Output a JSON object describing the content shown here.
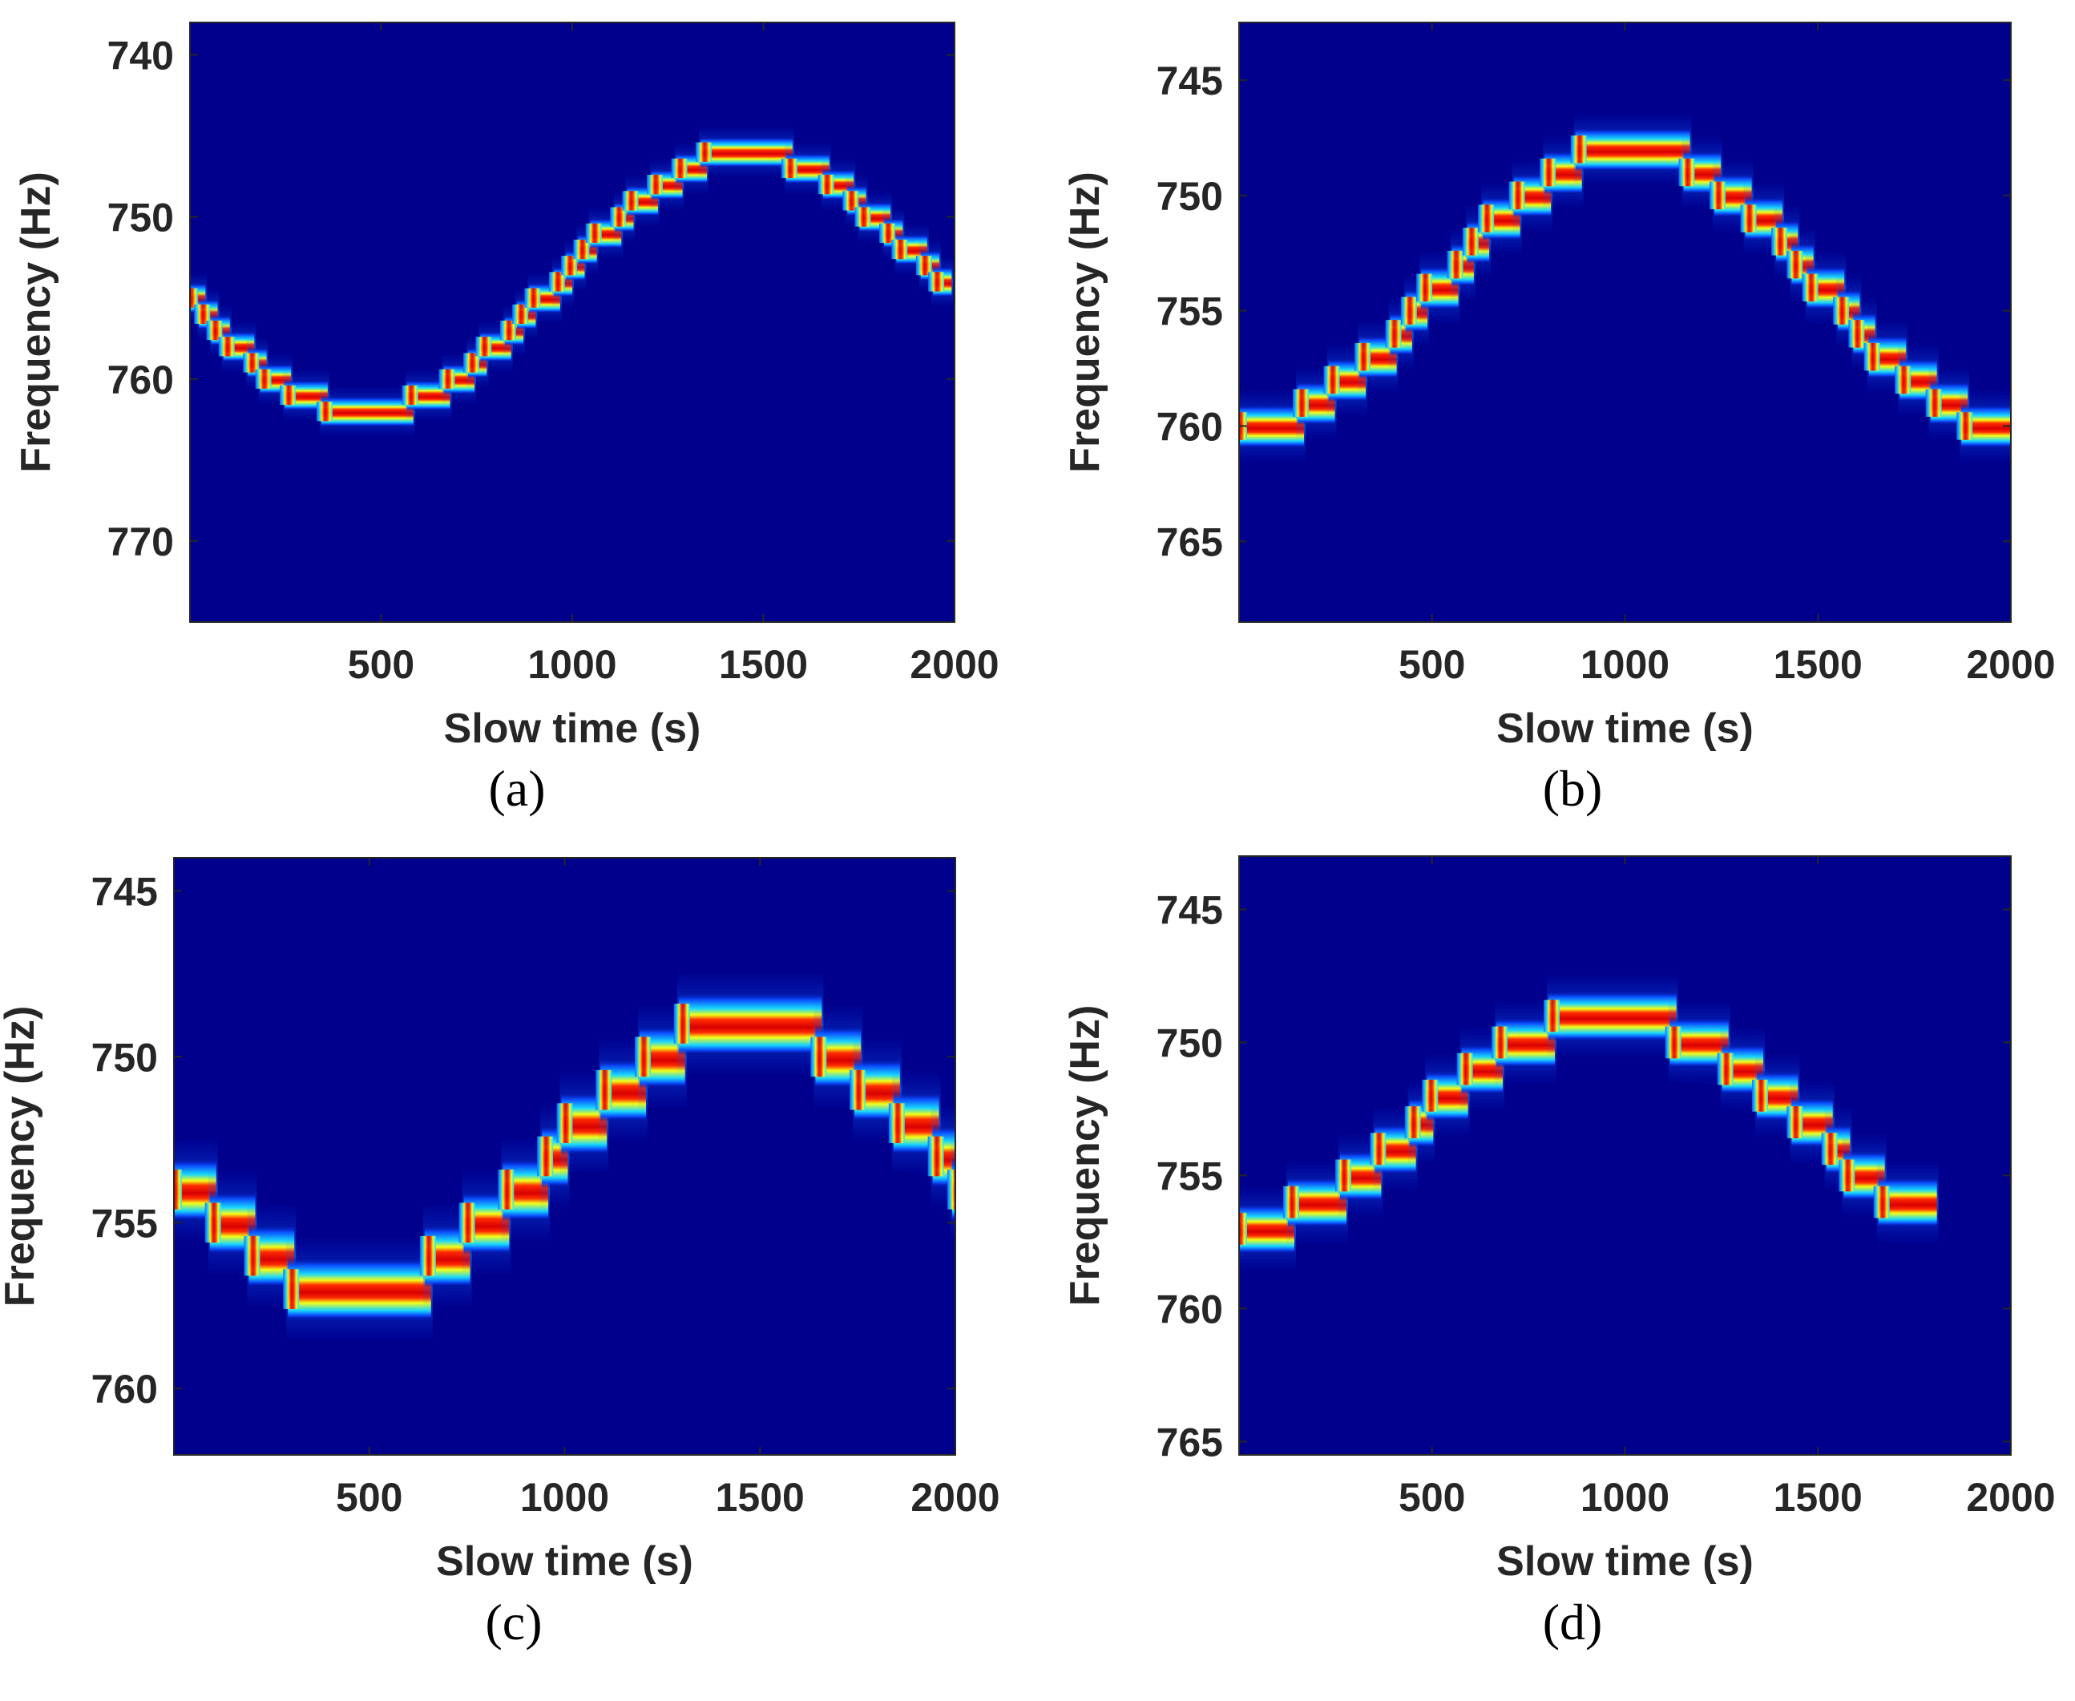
{
  "chart_data": [
    {
      "type": "heatmap",
      "subtype": "spectrogram-track",
      "panel": "a",
      "caption": "(a)",
      "xlabel": "Slow time (s)",
      "ylabel": "Frequency (Hz)",
      "xlim": [
        0,
        2000
      ],
      "ylim": [
        738,
        775
      ],
      "y_reversed": true,
      "xticks": [
        500,
        1000,
        1500,
        2000
      ],
      "yticks": [
        740,
        750,
        760,
        770
      ],
      "bin_hz": 1,
      "step_s": 32,
      "track": {
        "kind": "sine",
        "center": 754,
        "amplitude": 8,
        "period": 2000,
        "t_min": 450,
        "direction": "up"
      },
      "background": "#00008c"
    },
    {
      "type": "heatmap",
      "subtype": "spectrogram-track",
      "panel": "b",
      "caption": "(b)",
      "xlabel": "Slow time (s)",
      "ylabel": "Frequency (Hz)",
      "xlim": [
        0,
        2000
      ],
      "ylim": [
        742.5,
        768.5
      ],
      "y_reversed": true,
      "xticks": [
        500,
        1000,
        1500,
        2000
      ],
      "yticks": [
        745,
        750,
        755,
        760,
        765
      ],
      "bin_hz": 1,
      "step_s": 40,
      "track": {
        "kind": "cosine",
        "center": 754,
        "amplitude": 6,
        "period": 2000,
        "t_peak": 1000,
        "direction": "down"
      },
      "background": "#00008c"
    },
    {
      "type": "heatmap",
      "subtype": "spectrogram-track",
      "panel": "c",
      "caption": "(c)",
      "xlabel": "Slow time (s)",
      "ylabel": "Frequency (Hz)",
      "xlim": [
        0,
        2000
      ],
      "ylim": [
        744,
        762
      ],
      "y_reversed": true,
      "xticks": [
        500,
        1000,
        1500,
        2000
      ],
      "yticks": [
        745,
        750,
        755,
        760
      ],
      "bin_hz": 1,
      "step_s": 50,
      "track": {
        "kind": "sine",
        "center": 753,
        "amplitude": 4,
        "period": 2000,
        "t_min": 450,
        "direction": "up"
      },
      "background": "#00008c"
    },
    {
      "type": "heatmap",
      "subtype": "spectrogram-track",
      "panel": "d",
      "caption": "(d)",
      "xlabel": "Slow time (s)",
      "ylabel": "Frequency (Hz)",
      "xlim": [
        0,
        2000
      ],
      "ylim": [
        743,
        765.5
      ],
      "y_reversed": true,
      "xticks": [
        500,
        1000,
        1500,
        2000
      ],
      "yticks": [
        745,
        750,
        755,
        760,
        765
      ],
      "bin_hz": 1,
      "step_s": 45,
      "track": {
        "kind": "cosine",
        "center": 753,
        "amplitude": 4,
        "period": 2000,
        "t_peak": 950,
        "direction": "down"
      },
      "background": "#00008c"
    }
  ]
}
